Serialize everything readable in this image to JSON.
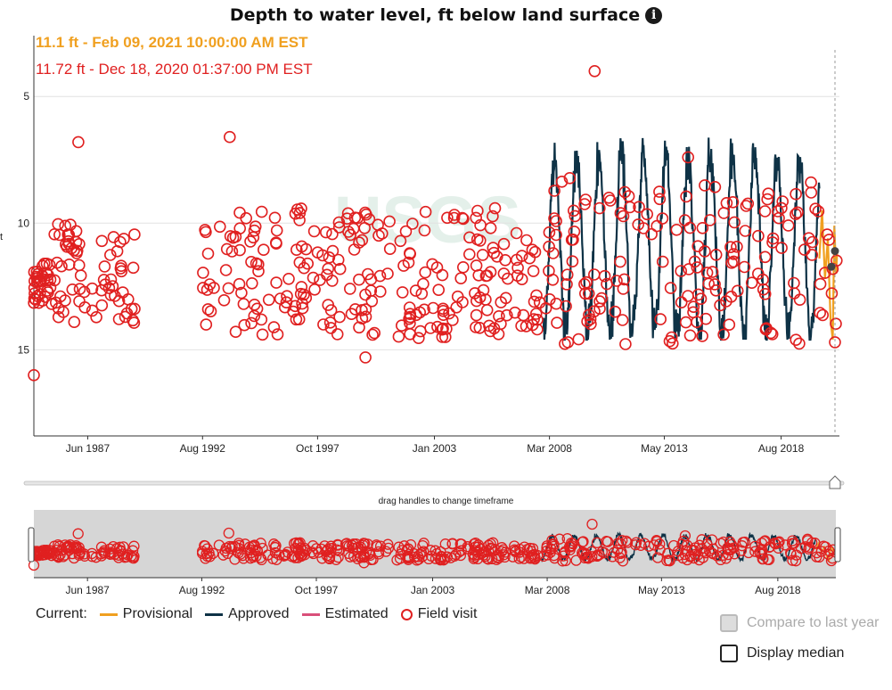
{
  "title": "Depth to water level, ft below land surface",
  "tooltip": {
    "provisional": "11.1 ft - Feb 09, 2021 10:00:00 AM EST",
    "field_visit": "11.72 ft - Dec 18, 2020 01:37:00 PM EST"
  },
  "axis_unit": "ft",
  "slider_caption": "drag handles to change timeframe",
  "legend": {
    "current_label": "Current:",
    "provisional": "Provisional",
    "approved": "Approved",
    "estimated": "Estimated",
    "field_visit": "Field visit"
  },
  "options": {
    "compare": "Compare to last year",
    "median": "Display median"
  },
  "colors": {
    "provisional": "#f0a020",
    "approved": "#0e3246",
    "estimated": "#d94f7a",
    "field_visit": "#e02020",
    "watermark": "#e4f0ea"
  },
  "chart_data": {
    "type": "line",
    "title": "Depth to water level, ft below land surface",
    "ylabel": "ft",
    "y_inverted": true,
    "x_range": [
      1985.0,
      2021.2
    ],
    "ylim": [
      18.4,
      2.6
    ],
    "y_ticks": [
      5,
      10,
      15
    ],
    "x_ticks": [
      {
        "label": "Jun 1987",
        "x": 1987.42
      },
      {
        "label": "Aug 1992",
        "x": 1992.58
      },
      {
        "label": "Oct 1997",
        "x": 1997.75
      },
      {
        "label": "Jan 2003",
        "x": 2003.0
      },
      {
        "label": "Mar 2008",
        "x": 2008.17
      },
      {
        "label": "May 2013",
        "x": 2013.33
      },
      {
        "label": "Aug 2018",
        "x": 2018.58
      }
    ],
    "series": [
      {
        "name": "Approved",
        "x_range": [
          2007.9,
          2020.3
        ],
        "values_min": 6.6,
        "values_max": 14.6
      },
      {
        "name": "Provisional",
        "x_range": [
          2020.3,
          2021.1
        ],
        "values_min": 9.5,
        "values_max": 14.7
      }
    ],
    "field_visits": {
      "count_approx": 540,
      "x_range": [
        1985.0,
        2021.1
      ],
      "values_min": 4.0,
      "values_max": 16.0
    },
    "cursor": {
      "x": 2021.1,
      "provisional_value": 11.1,
      "field_visit_value": 11.72
    }
  }
}
